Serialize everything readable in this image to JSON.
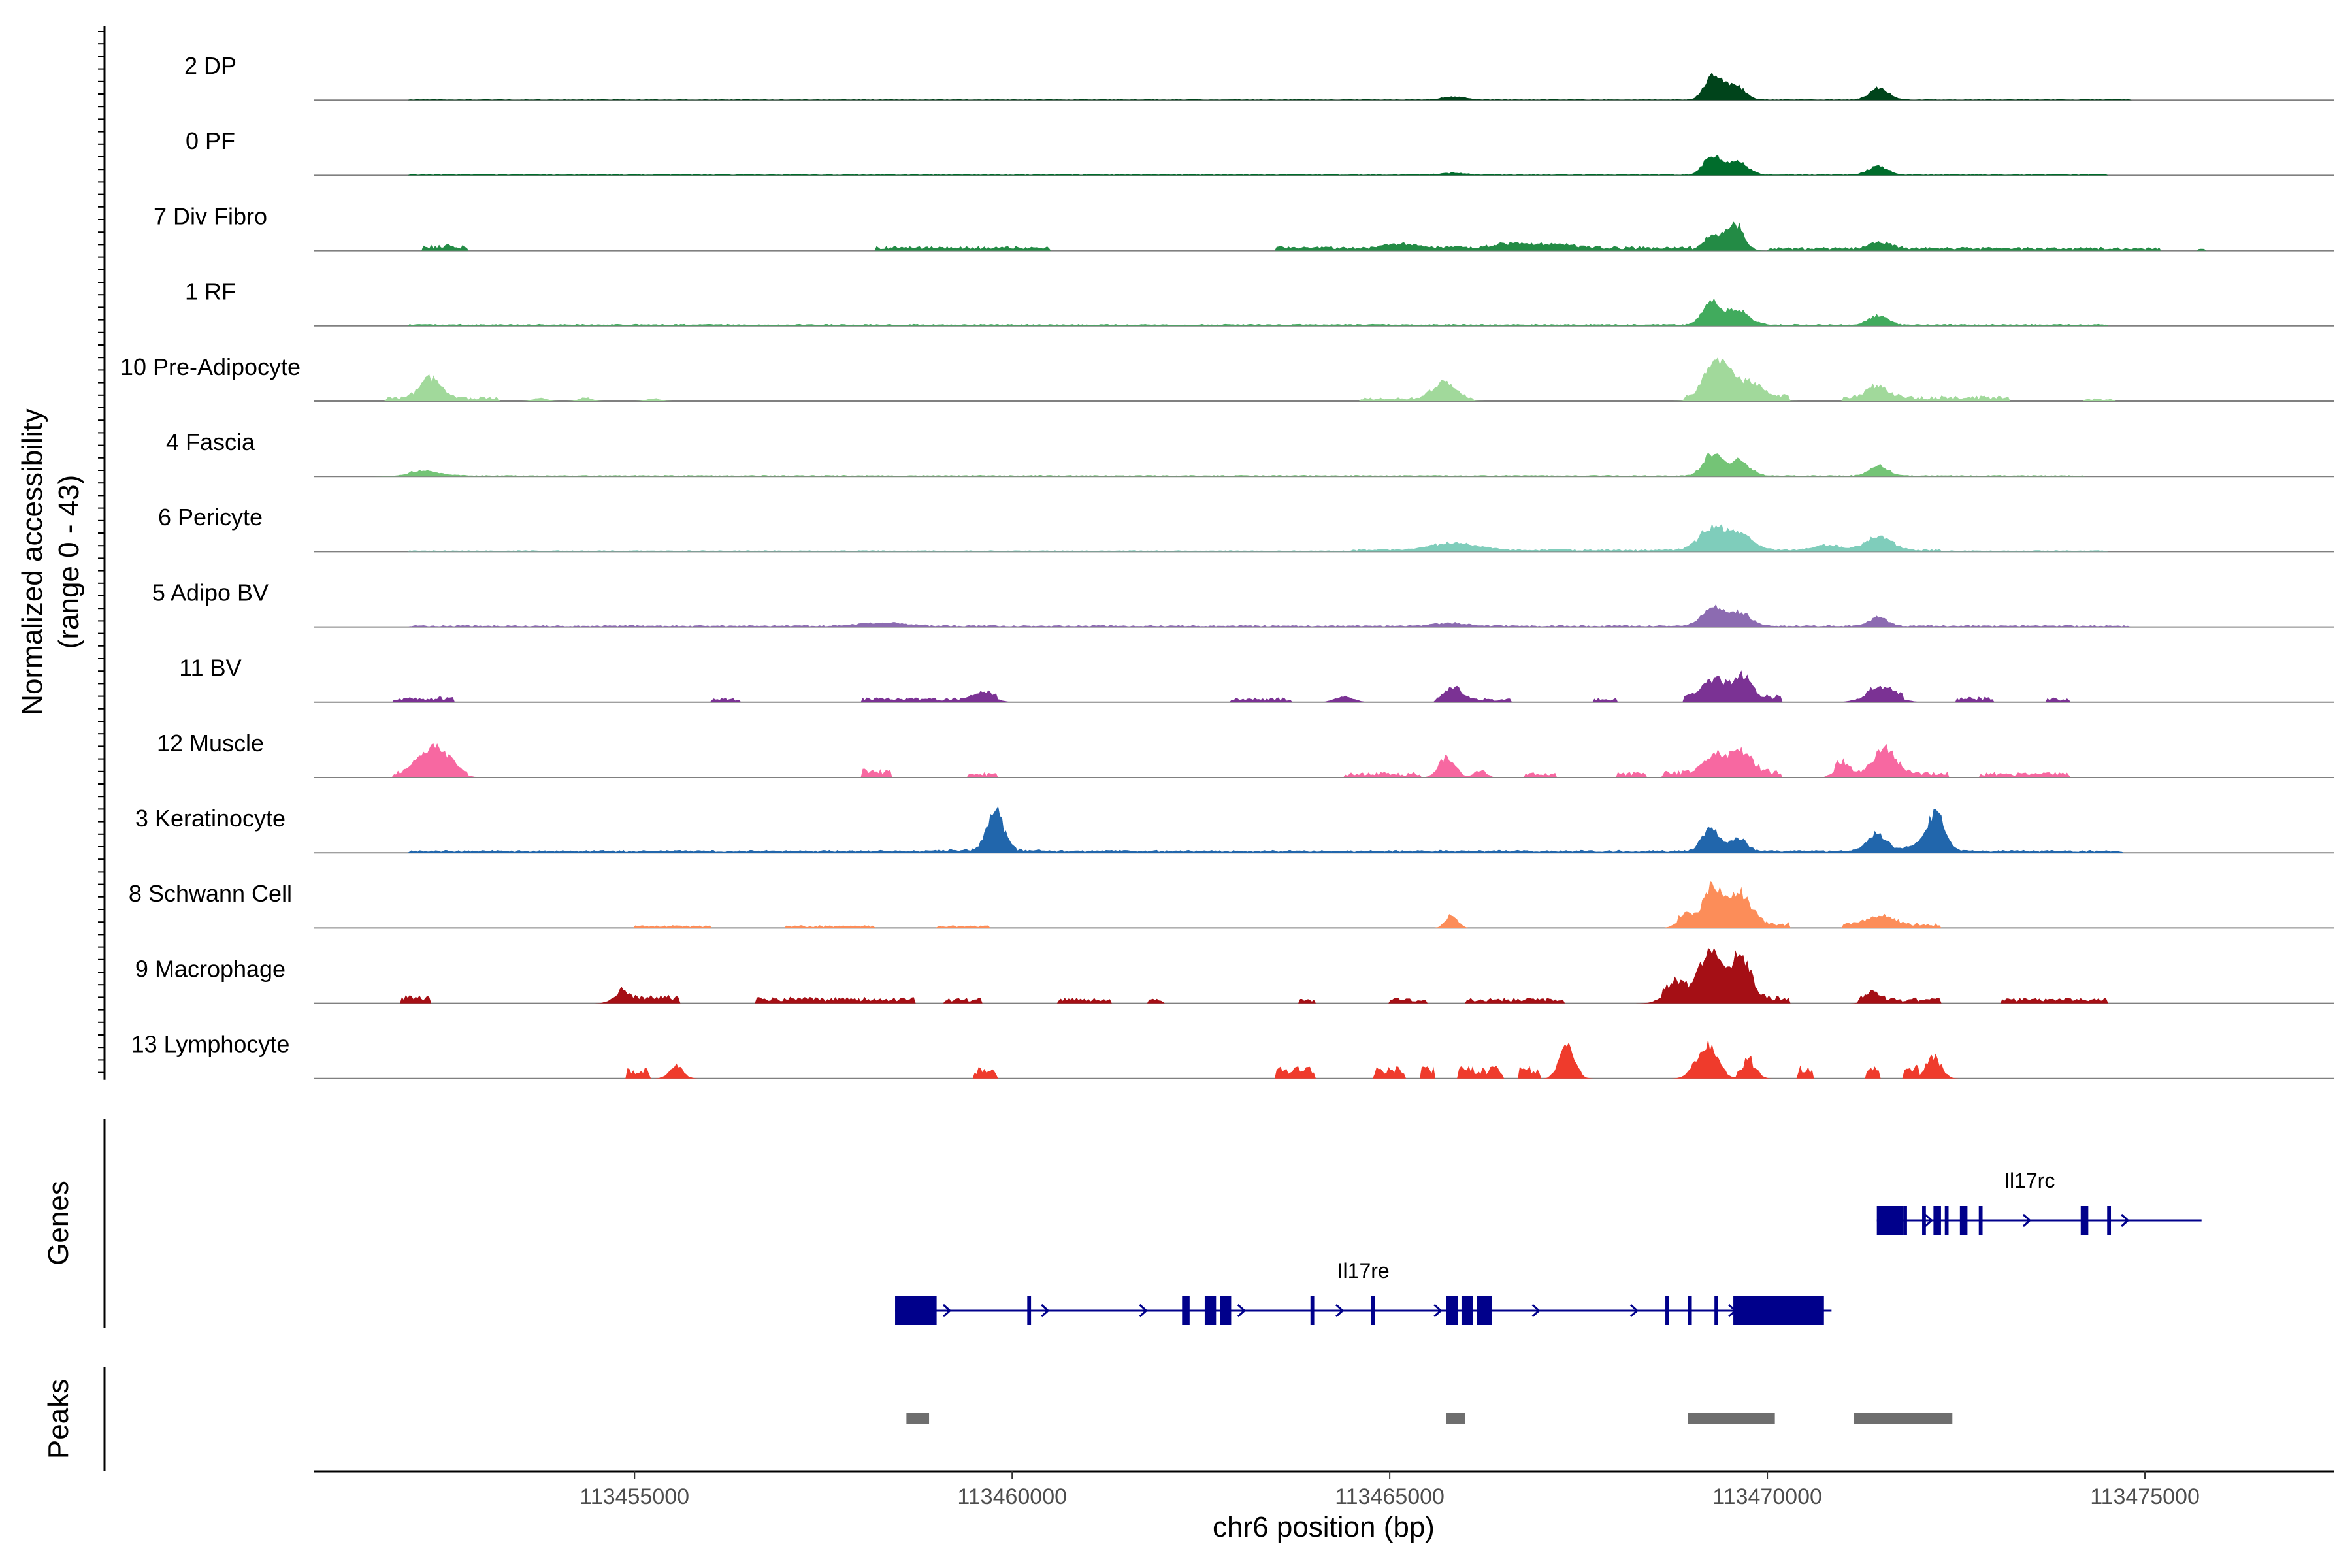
{
  "chart_data": {
    "type": "coverage-track",
    "chromosome": "chr6",
    "x_range": [
      113450750,
      113477500
    ],
    "xlabel": "chr6 position (bp)",
    "x_ticks": [
      113455000,
      113460000,
      113465000,
      113470000,
      113475000
    ],
    "x_tick_labels": [
      "113455000",
      "113460000",
      "113465000",
      "113470000",
      "113475000"
    ],
    "coverage_ylabel_line1": "Normalized accessibility",
    "coverage_ylabel_line2": "(range 0 - 43)",
    "coverage_range": [
      0,
      43
    ],
    "tracks": [
      {
        "name": "2 DP",
        "color": "#00441b",
        "peaks": [
          [
            113469280,
            38,
            110
          ],
          [
            113469560,
            26,
            130
          ],
          [
            113471480,
            20,
            120
          ],
          [
            113465850,
            5,
            150
          ]
        ],
        "base": [
          [
            113452000,
            113474800,
            1
          ]
        ]
      },
      {
        "name": "0 PF",
        "color": "#006d2c",
        "peaks": [
          [
            113469270,
            32,
            110
          ],
          [
            113469600,
            22,
            130
          ],
          [
            113471470,
            15,
            120
          ],
          [
            113465850,
            3,
            150
          ]
        ],
        "base": [
          [
            113452000,
            113474500,
            1.5
          ]
        ]
      },
      {
        "name": "7 Div Fibro",
        "color": "#238b45",
        "peaks": [
          [
            113469580,
            44,
            110
          ],
          [
            113469280,
            26,
            130
          ],
          [
            113471500,
            10,
            140
          ],
          [
            113466600,
            7,
            250
          ],
          [
            113465200,
            6,
            220
          ],
          [
            113467200,
            6,
            280
          ]
        ],
        "base": [
          [
            113452200,
            113452800,
            7
          ],
          [
            113458200,
            113460500,
            5
          ],
          [
            113463500,
            113469000,
            5
          ],
          [
            113470000,
            113475200,
            4
          ],
          [
            113475700,
            113475800,
            3
          ]
        ]
      },
      {
        "name": "1 RF",
        "color": "#41ab5d",
        "peaks": [
          [
            113469270,
            40,
            120
          ],
          [
            113469620,
            25,
            140
          ],
          [
            113471470,
            16,
            120
          ]
        ],
        "base": [
          [
            113452000,
            113474500,
            2
          ]
        ]
      },
      {
        "name": "10 Pre-Adipocyte",
        "color": "#a1d99b",
        "peaks": [
          [
            113469320,
            58,
            150
          ],
          [
            113469700,
            28,
            200
          ],
          [
            113452300,
            34,
            140
          ],
          [
            113465720,
            26,
            150
          ],
          [
            113471450,
            20,
            140
          ],
          [
            113453750,
            6,
            80
          ],
          [
            113454350,
            6,
            80
          ],
          [
            113455250,
            5,
            80
          ]
        ],
        "base": [
          [
            113451700,
            113453200,
            5
          ],
          [
            113464600,
            113466100,
            4
          ],
          [
            113468900,
            113470300,
            7
          ],
          [
            113471000,
            113473200,
            6
          ],
          [
            113474200,
            113474600,
            3
          ]
        ]
      },
      {
        "name": "4 Fascia",
        "color": "#74c476",
        "peaks": [
          [
            113469270,
            36,
            120
          ],
          [
            113469620,
            24,
            140
          ],
          [
            113471480,
            17,
            120
          ],
          [
            113452200,
            8,
            200
          ]
        ],
        "base": [
          [
            113452000,
            113474200,
            1.5
          ]
        ]
      },
      {
        "name": "6 Pericyte",
        "color": "#7fcdbb",
        "peaks": [
          [
            113469270,
            38,
            170
          ],
          [
            113469650,
            24,
            170
          ],
          [
            113471480,
            22,
            170
          ],
          [
            113465850,
            12,
            280
          ],
          [
            113470800,
            8,
            180
          ]
        ],
        "base": [
          [
            113452000,
            113474500,
            1.5
          ],
          [
            113464500,
            113472300,
            3
          ]
        ]
      },
      {
        "name": "5 Adipo BV",
        "color": "#8c6bb1",
        "peaks": [
          [
            113469280,
            30,
            140
          ],
          [
            113469620,
            22,
            150
          ],
          [
            113471470,
            14,
            120
          ],
          [
            113458300,
            5,
            300
          ],
          [
            113465800,
            5,
            200
          ]
        ],
        "base": [
          [
            113452000,
            113474800,
            2
          ]
        ]
      },
      {
        "name": "11 BV",
        "color": "#7b3294",
        "peaks": [
          [
            113469280,
            30,
            140
          ],
          [
            113469660,
            36,
            130
          ],
          [
            113471500,
            18,
            200
          ],
          [
            113465850,
            22,
            100
          ],
          [
            113459640,
            14,
            130
          ],
          [
            113464400,
            10,
            120
          ]
        ],
        "base": [
          [
            113451800,
            113452600,
            6
          ],
          [
            113456000,
            113456400,
            5
          ],
          [
            113458000,
            113459800,
            5
          ],
          [
            113462900,
            113463700,
            5
          ],
          [
            113465600,
            113466600,
            5
          ],
          [
            113467700,
            113468000,
            5
          ],
          [
            113468900,
            113470200,
            8
          ],
          [
            113471300,
            113471800,
            6
          ],
          [
            113472500,
            113473000,
            6
          ],
          [
            113473700,
            113474000,
            5
          ]
        ]
      },
      {
        "name": "12 Muscle",
        "color": "#f768a1",
        "peaks": [
          [
            113452350,
            48,
            200
          ],
          [
            113465760,
            34,
            110
          ],
          [
            113469300,
            28,
            150
          ],
          [
            113469650,
            34,
            150
          ],
          [
            113471550,
            42,
            140
          ],
          [
            113470980,
            18,
            100
          ],
          [
            113466200,
            12,
            80
          ]
        ],
        "base": [
          [
            113451800,
            113452800,
            6
          ],
          [
            113458000,
            113458400,
            10
          ],
          [
            113459400,
            113459800,
            6
          ],
          [
            113464400,
            113465400,
            6
          ],
          [
            113466800,
            113467200,
            6
          ],
          [
            113468000,
            113468400,
            6
          ],
          [
            113468600,
            113470200,
            8
          ],
          [
            113470900,
            113472400,
            8
          ],
          [
            113472800,
            113474000,
            6
          ]
        ]
      },
      {
        "name": "3 Keratinocyte",
        "color": "#2166ac",
        "peaks": [
          [
            113459780,
            64,
            110
          ],
          [
            113472240,
            62,
            110
          ],
          [
            113469250,
            38,
            110
          ],
          [
            113469620,
            20,
            110
          ],
          [
            113471450,
            30,
            120
          ],
          [
            113472000,
            10,
            150
          ]
        ],
        "base": [
          [
            113452000,
            113474700,
            3
          ],
          [
            113458800,
            113460400,
            4
          ],
          [
            113468800,
            113472800,
            3
          ]
        ]
      },
      {
        "name": "8 Schwann Cell",
        "color": "#fc8d59",
        "peaks": [
          [
            113469280,
            64,
            130
          ],
          [
            113469650,
            52,
            140
          ],
          [
            113465820,
            22,
            80
          ],
          [
            113471500,
            14,
            200
          ],
          [
            113468900,
            16,
            100
          ]
        ],
        "base": [
          [
            113455000,
            113456000,
            3
          ],
          [
            113457000,
            113458200,
            3
          ],
          [
            113459000,
            113459700,
            3
          ],
          [
            113468800,
            113470300,
            7
          ],
          [
            113471000,
            113472300,
            5
          ]
        ]
      },
      {
        "name": "9 Macrophage",
        "color": "#a50f15",
        "peaks": [
          [
            113469250,
            88,
            140
          ],
          [
            113469650,
            70,
            130
          ],
          [
            113468800,
            28,
            150
          ],
          [
            113471400,
            16,
            90
          ],
          [
            113454800,
            14,
            100
          ]
        ],
        "base": [
          [
            113451900,
            113452300,
            9
          ],
          [
            113454800,
            113455600,
            9
          ],
          [
            113456600,
            113458700,
            7
          ],
          [
            113459100,
            113459600,
            6
          ],
          [
            113460600,
            113461300,
            6
          ],
          [
            113461800,
            113462000,
            5
          ],
          [
            113463800,
            113464000,
            5
          ],
          [
            113465000,
            113465500,
            6
          ],
          [
            113466000,
            113467300,
            6
          ],
          [
            113468600,
            113470300,
            8
          ],
          [
            113471200,
            113472300,
            6
          ],
          [
            113473100,
            113474500,
            6
          ]
        ]
      },
      {
        "name": "13 Lymphocyte",
        "color": "#ef3b2c",
        "peaks": [
          [
            113467350,
            56,
            100
          ],
          [
            113469200,
            56,
            140
          ],
          [
            113472200,
            36,
            100
          ],
          [
            113455550,
            22,
            90
          ],
          [
            113469800,
            22,
            80
          ]
        ],
        "base": [
          [
            113454900,
            113455200,
            14
          ],
          [
            113459500,
            113459800,
            14
          ],
          [
            113463500,
            113464000,
            14
          ],
          [
            113464800,
            113465200,
            14
          ],
          [
            113465400,
            113465600,
            14
          ],
          [
            113465900,
            113466500,
            14
          ],
          [
            113466700,
            113467000,
            14
          ],
          [
            113469600,
            113469800,
            14
          ],
          [
            113470400,
            113470600,
            14
          ],
          [
            113471300,
            113471500,
            14
          ],
          [
            113471800,
            113472000,
            14
          ]
        ]
      }
    ],
    "genes": [
      {
        "name": "Il17rc",
        "row": 0,
        "start": 113471450,
        "end": 113475750,
        "strand": "+",
        "exons": [
          [
            113471450,
            113471800
          ],
          [
            113472200,
            113472300
          ],
          [
            113472550,
            113472650
          ],
          [
            113474150,
            113474250
          ]
        ],
        "thin": [
          [
            113471800,
            113471850
          ],
          [
            113472050,
            113472100
          ],
          [
            113472350,
            113472400
          ],
          [
            113472800,
            113472850
          ],
          [
            113474500,
            113474550
          ]
        ]
      },
      {
        "name": "Il17re",
        "row": 1,
        "start": 113458450,
        "end": 113470850,
        "strand": "+",
        "exons": [
          [
            113458450,
            113459000
          ],
          [
            113462250,
            113462350
          ],
          [
            113462550,
            113462700
          ],
          [
            113462750,
            113462900
          ],
          [
            113465750,
            113465900
          ],
          [
            113465950,
            113466050
          ],
          [
            113466150,
            113466350
          ],
          [
            113469550,
            113469700
          ],
          [
            113469600,
            113470750
          ]
        ],
        "thin": [
          [
            113460200,
            113460250
          ],
          [
            113463950,
            113464000
          ],
          [
            113464750,
            113464800
          ],
          [
            113466050,
            113466100
          ],
          [
            113468650,
            113468700
          ],
          [
            113468950,
            113469000
          ],
          [
            113469300,
            113469350
          ]
        ]
      }
    ],
    "gene_track_label": "Genes",
    "peak_track_label": "Peaks",
    "peaks": [
      [
        113458600,
        113458900
      ],
      [
        113465750,
        113466000
      ],
      [
        113468950,
        113470100
      ],
      [
        113471150,
        113472450
      ]
    ]
  }
}
